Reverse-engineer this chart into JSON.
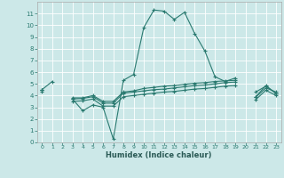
{
  "xlabel": "Humidex (Indice chaleur)",
  "bg_color": "#cce8e8",
  "grid_color": "#b0d8d8",
  "line_color": "#2a7a70",
  "xlim": [
    -0.5,
    23.5
  ],
  "ylim": [
    0,
    12
  ],
  "xticks": [
    0,
    1,
    2,
    3,
    4,
    5,
    6,
    7,
    8,
    9,
    10,
    11,
    12,
    13,
    14,
    15,
    16,
    17,
    18,
    19,
    20,
    21,
    22,
    23
  ],
  "yticks": [
    0,
    1,
    2,
    3,
    4,
    5,
    6,
    7,
    8,
    9,
    10,
    11
  ],
  "series": [
    [
      4.5,
      5.2,
      null,
      3.7,
      2.7,
      3.2,
      3.0,
      0.3,
      5.3,
      5.8,
      9.8,
      11.3,
      11.2,
      10.5,
      11.1,
      9.3,
      7.8,
      5.6,
      5.2,
      5.5,
      null,
      4.3,
      4.8,
      4.2
    ],
    [
      4.5,
      null,
      null,
      3.8,
      3.8,
      4.0,
      3.5,
      3.5,
      4.3,
      4.4,
      4.6,
      4.7,
      4.8,
      4.85,
      4.95,
      5.05,
      5.1,
      5.2,
      5.25,
      5.3,
      null,
      3.9,
      4.85,
      4.15
    ],
    [
      4.5,
      null,
      null,
      3.7,
      3.75,
      3.9,
      3.35,
      3.35,
      4.2,
      4.3,
      4.4,
      4.5,
      4.55,
      4.65,
      4.75,
      4.85,
      4.9,
      5.0,
      5.1,
      5.15,
      null,
      3.85,
      4.65,
      4.3
    ],
    [
      4.3,
      null,
      null,
      3.5,
      3.55,
      3.7,
      3.1,
      3.1,
      3.9,
      4.0,
      4.1,
      4.2,
      4.3,
      4.35,
      4.45,
      4.55,
      4.6,
      4.7,
      4.8,
      4.85,
      null,
      3.65,
      4.45,
      4.0
    ]
  ]
}
